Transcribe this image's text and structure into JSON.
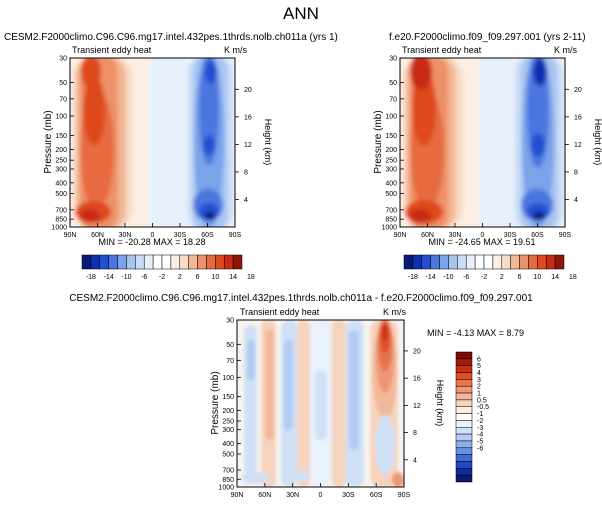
{
  "page_title": "ANN",
  "colors": {
    "pos": [
      "#fbeee3",
      "#f8dcc7",
      "#f3b795",
      "#ed9168",
      "#e76a40",
      "#de4a1e",
      "#c92a12",
      "#8f1408"
    ],
    "neg": [
      "#e7f0fb",
      "#cadcf6",
      "#a7c4f1",
      "#7aa3ea",
      "#4b76df",
      "#2450d0",
      "#0d2fb2",
      "#081a7a"
    ],
    "diff_pos": [
      "#fbeee3",
      "#f6d3bd",
      "#f2b89a",
      "#ee9774",
      "#e8734c",
      "#de4f27",
      "#c83015",
      "#a3190a",
      "#7b0c06"
    ],
    "diff_neg": [
      "#e9f1fb",
      "#cfe0f7",
      "#b2cbf2",
      "#8eb0ec",
      "#6891e4",
      "#3f6bd9",
      "#2249c6",
      "#0f2a9c",
      "#081a6c"
    ]
  },
  "chart_data": [
    {
      "type": "heatmap",
      "id": "panel1",
      "title": "CESM2.F2000climo.C96.C96.mg17.intel.432pes.1thrds.nolb.ch011a (yrs 1)",
      "left_label": "Transient eddy heat",
      "right_label": "K m/s",
      "xlabel": "",
      "ylabel": "Pressure (mb)",
      "ylabel_right": "Height (km)",
      "xticks": [
        "90N",
        "60N",
        "30N",
        "0",
        "30S",
        "60S",
        "90S"
      ],
      "yticks": [
        "30",
        "50",
        "70",
        "100",
        "150",
        "200",
        "250",
        "300",
        "400",
        "500",
        "700",
        "850",
        "1000"
      ],
      "height_ticks": [
        "4",
        "8",
        "12",
        "16",
        "20"
      ],
      "stats": "MIN = -20.28   MAX = 18.28",
      "min": -20.28,
      "max": 18.28
    },
    {
      "type": "heatmap",
      "id": "panel2",
      "title": "f.e20.F2000climo.f09_f09.297.001 (yrs 2-11)",
      "left_label": "Transient eddy heat",
      "right_label": "K m/s",
      "xlabel": "",
      "ylabel": "Pressure (mb)",
      "ylabel_right": "Height (km)",
      "xticks": [
        "90N",
        "60N",
        "30N",
        "0",
        "30S",
        "60S",
        "90S"
      ],
      "yticks": [
        "30",
        "50",
        "70",
        "100",
        "150",
        "200",
        "250",
        "300",
        "400",
        "500",
        "700",
        "850",
        "1000"
      ],
      "height_ticks": [
        "4",
        "8",
        "12",
        "16",
        "20"
      ],
      "stats": "MIN = -24.65   MAX = 19.51",
      "min": -24.65,
      "max": 19.51
    },
    {
      "type": "heatmap",
      "id": "panel3",
      "title": "CESM2.F2000climo.C96.C96.mg17.intel.432pes.1thrds.nolb.ch011a - f.e20.F2000climo.f09_f09.297.001",
      "left_label": "Transient eddy heat",
      "right_label": "K m/s",
      "xlabel": "",
      "ylabel": "Pressure (mb)",
      "ylabel_right": "Height (km)",
      "xticks": [
        "90N",
        "60N",
        "30N",
        "0",
        "30S",
        "60S",
        "90S"
      ],
      "yticks": [
        "30",
        "50",
        "70",
        "100",
        "150",
        "200",
        "250",
        "300",
        "400",
        "500",
        "700",
        "850",
        "1000"
      ],
      "height_ticks": [
        "4",
        "8",
        "12",
        "16",
        "20"
      ],
      "stats": "MIN = -4.13   MAX =  8.79",
      "min": -4.13,
      "max": 8.79
    },
    {
      "type": "colorbar",
      "id": "shared_colorbar",
      "orientation": "horizontal",
      "labels": [
        "-18",
        "-14",
        "-10",
        "-6",
        "-2",
        "2",
        "6",
        "10",
        "14",
        "18"
      ],
      "levels": [
        -18,
        -14,
        -10,
        -6,
        -2,
        2,
        6,
        10,
        14,
        18
      ]
    },
    {
      "type": "colorbar",
      "id": "diff_colorbar",
      "orientation": "vertical",
      "labels": [
        "6",
        "5",
        "4",
        "3",
        "2",
        "1",
        "0.5",
        "-0.5",
        "-1",
        "-2",
        "-3",
        "-4",
        "-5",
        "-6"
      ],
      "levels": [
        6,
        5,
        4,
        3,
        2,
        1,
        0.5,
        -0.5,
        -1,
        -2,
        -3,
        -4,
        -5,
        -6
      ]
    }
  ]
}
